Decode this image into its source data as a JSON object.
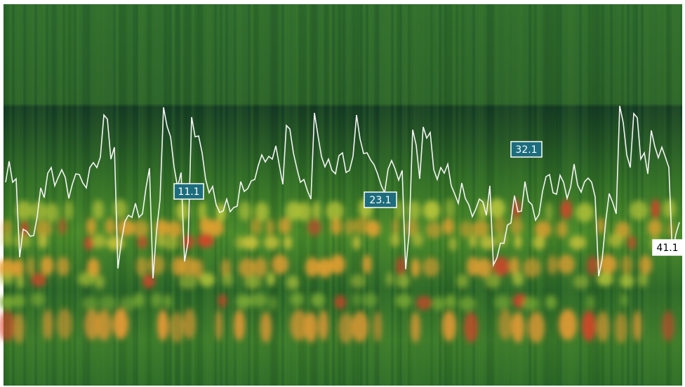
{
  "markers": [
    {
      "label": "11.1"
    },
    {
      "label": "23.1"
    },
    {
      "label": "32.1"
    },
    {
      "label": "41.1"
    }
  ]
}
